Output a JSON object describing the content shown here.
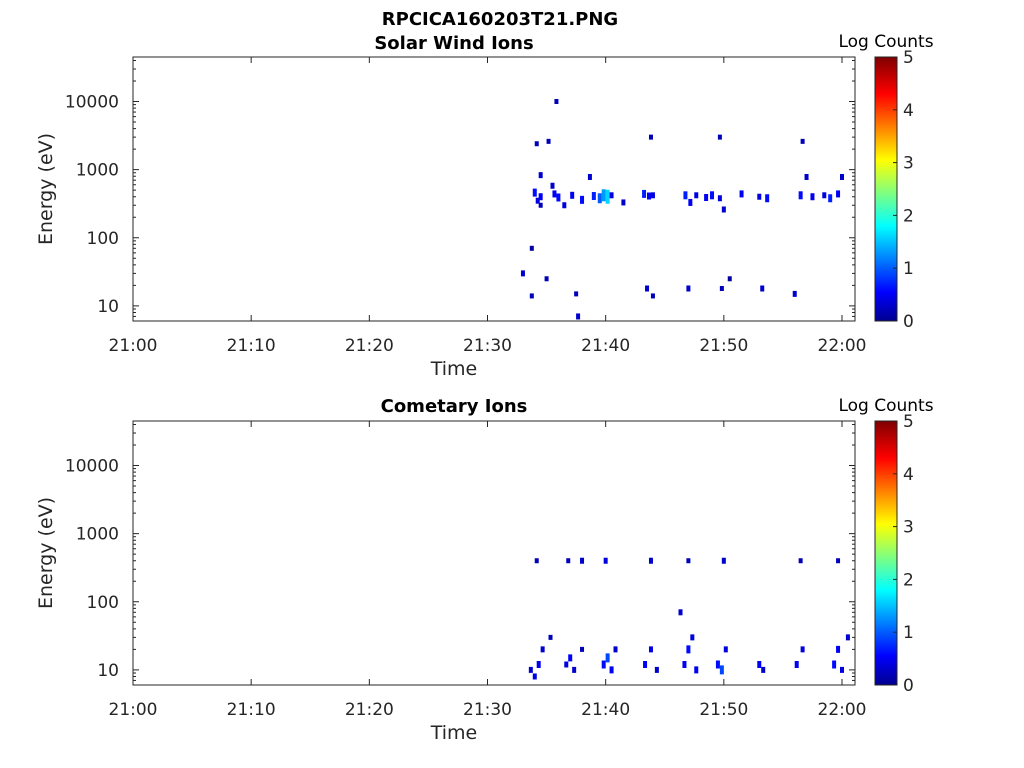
{
  "figure": {
    "title": "RPCICA160203T21.PNG"
  },
  "colorbar": {
    "label": "Log Counts",
    "ticks": [
      "0",
      "1",
      "2",
      "3",
      "4",
      "5"
    ],
    "range": [
      0,
      5
    ]
  },
  "chart_data": [
    {
      "type": "heatmap",
      "title": "Solar Wind Ions",
      "xlabel": "Time",
      "ylabel": "Energy (eV)",
      "xticks": [
        "21:00",
        "21:10",
        "21:20",
        "21:30",
        "21:40",
        "21:50",
        "22:00"
      ],
      "yticks": [
        "10",
        "100",
        "1000",
        "10000"
      ],
      "xlim": [
        "21:00",
        "22:00"
      ],
      "ylim_eV": [
        6,
        45000
      ],
      "yscale": "log",
      "colorscale": "jet",
      "value_label": "Log Counts",
      "cells": [
        [
          "21:33:00",
          30,
          0.3
        ],
        [
          "21:33:45",
          14,
          0.2
        ],
        [
          "21:33:45",
          70,
          0.1
        ],
        [
          "21:34:30",
          830,
          0.3
        ],
        [
          "21:34:30",
          400,
          0.5
        ],
        [
          "21:34:00",
          460,
          0.6
        ],
        [
          "21:34:15",
          350,
          0.4
        ],
        [
          "21:34:30",
          300,
          0.2
        ],
        [
          "21:35:00",
          25,
          0.2
        ],
        [
          "21:35:30",
          580,
          0.3
        ],
        [
          "21:35:40",
          440,
          0.5
        ],
        [
          "21:36:00",
          390,
          0.6
        ],
        [
          "21:36:30",
          300,
          0.4
        ],
        [
          "21:37:10",
          420,
          0.5
        ],
        [
          "21:37:30",
          15,
          0.2
        ],
        [
          "21:37:40",
          7,
          0.3
        ],
        [
          "21:38:00",
          360,
          0.6
        ],
        [
          "21:38:40",
          780,
          0.3
        ],
        [
          "21:39:00",
          410,
          0.7
        ],
        [
          "21:39:30",
          380,
          1.0
        ],
        [
          "21:39:50",
          420,
          1.3
        ],
        [
          "21:40:10",
          400,
          1.6
        ],
        [
          "21:40:30",
          420,
          0.4
        ],
        [
          "21:41:30",
          330,
          0.3
        ],
        [
          "21:43:15",
          440,
          0.7
        ],
        [
          "21:43:40",
          410,
          0.5
        ],
        [
          "21:44:00",
          420,
          0.4
        ],
        [
          "21:43:30",
          18,
          0.3
        ],
        [
          "21:44:00",
          14,
          0.2
        ],
        [
          "21:46:45",
          420,
          0.7
        ],
        [
          "21:47:10",
          330,
          0.5
        ],
        [
          "21:47:40",
          420,
          0.4
        ],
        [
          "21:47:00",
          18,
          0.3
        ],
        [
          "21:48:30",
          390,
          0.5
        ],
        [
          "21:49:00",
          420,
          0.6
        ],
        [
          "21:49:40",
          380,
          0.4
        ],
        [
          "21:50:00",
          260,
          0.3
        ],
        [
          "21:49:50",
          18,
          0.2
        ],
        [
          "21:50:30",
          25,
          0.1
        ],
        [
          "21:51:30",
          440,
          0.5
        ],
        [
          "21:53:00",
          400,
          0.4
        ],
        [
          "21:53:40",
          380,
          0.6
        ],
        [
          "21:53:15",
          18,
          0.3
        ],
        [
          "21:56:00",
          15,
          0.3
        ],
        [
          "21:56:30",
          420,
          0.6
        ],
        [
          "21:57:00",
          780,
          0.3
        ],
        [
          "21:57:30",
          400,
          0.5
        ],
        [
          "21:58:30",
          420,
          0.4
        ],
        [
          "21:59:00",
          380,
          0.7
        ],
        [
          "21:59:40",
          440,
          0.5
        ],
        [
          "22:00:00",
          780,
          0.3
        ],
        [
          "21:34:10",
          2400,
          0.2
        ],
        [
          "21:35:10",
          2600,
          0.2
        ],
        [
          "21:35:50",
          10000,
          0.2
        ],
        [
          "21:43:50",
          3000,
          0.2
        ],
        [
          "21:49:40",
          3000,
          0.2
        ],
        [
          "21:56:40",
          2600,
          0.2
        ]
      ]
    },
    {
      "type": "heatmap",
      "title": "Cometary Ions",
      "xlabel": "Time",
      "ylabel": "Energy (eV)",
      "xticks": [
        "21:00",
        "21:10",
        "21:20",
        "21:30",
        "21:40",
        "21:50",
        "22:00"
      ],
      "yticks": [
        "10",
        "100",
        "1000",
        "10000"
      ],
      "xlim": [
        "21:00",
        "22:00"
      ],
      "ylim_eV": [
        6,
        45000
      ],
      "yscale": "log",
      "colorscale": "jet",
      "value_label": "Log Counts",
      "cells": [
        [
          "21:33:40",
          10,
          0.3
        ],
        [
          "21:34:00",
          8,
          0.4
        ],
        [
          "21:34:20",
          12,
          0.5
        ],
        [
          "21:34:40",
          20,
          0.3
        ],
        [
          "21:35:20",
          30,
          0.2
        ],
        [
          "21:34:10",
          400,
          0.2
        ],
        [
          "21:36:40",
          12,
          0.4
        ],
        [
          "21:37:00",
          15,
          0.5
        ],
        [
          "21:37:20",
          10,
          0.3
        ],
        [
          "21:38:00",
          20,
          0.2
        ],
        [
          "21:36:50",
          400,
          0.2
        ],
        [
          "21:38:00",
          400,
          0.3
        ],
        [
          "21:39:50",
          12,
          0.6
        ],
        [
          "21:40:10",
          15,
          0.9
        ],
        [
          "21:40:30",
          10,
          0.5
        ],
        [
          "21:40:50",
          20,
          0.3
        ],
        [
          "21:40:00",
          400,
          0.4
        ],
        [
          "21:43:20",
          12,
          0.5
        ],
        [
          "21:43:50",
          20,
          0.4
        ],
        [
          "21:44:20",
          10,
          0.3
        ],
        [
          "21:43:50",
          400,
          0.3
        ],
        [
          "21:46:40",
          12,
          0.5
        ],
        [
          "21:47:00",
          20,
          0.6
        ],
        [
          "21:47:20",
          30,
          0.4
        ],
        [
          "21:47:40",
          10,
          0.5
        ],
        [
          "21:46:20",
          70,
          0.3
        ],
        [
          "21:47:00",
          400,
          0.2
        ],
        [
          "21:49:30",
          12,
          0.6
        ],
        [
          "21:49:50",
          10,
          0.9
        ],
        [
          "21:50:10",
          20,
          0.4
        ],
        [
          "21:50:00",
          400,
          0.3
        ],
        [
          "21:53:00",
          12,
          0.5
        ],
        [
          "21:53:20",
          10,
          0.3
        ],
        [
          "21:56:10",
          12,
          0.5
        ],
        [
          "21:56:40",
          20,
          0.4
        ],
        [
          "21:56:30",
          400,
          0.2
        ],
        [
          "21:59:20",
          12,
          0.6
        ],
        [
          "21:59:40",
          20,
          0.5
        ],
        [
          "22:00:00",
          10,
          0.4
        ],
        [
          "22:00:30",
          30,
          0.3
        ],
        [
          "21:59:40",
          400,
          0.2
        ]
      ]
    }
  ]
}
